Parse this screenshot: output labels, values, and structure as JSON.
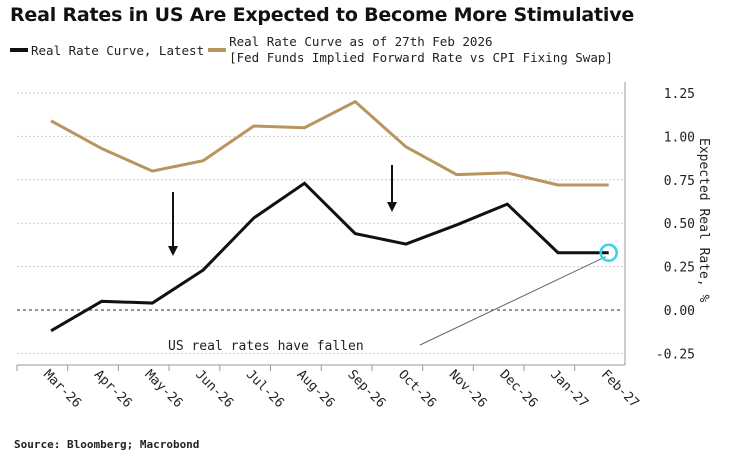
{
  "title": "Real Rates in US Are Expected to Become More Stimulative",
  "source": "Source: Bloomberg; Macrobond",
  "chart_data": {
    "type": "line",
    "title": "Real Rates in US Are Expected to Become More Stimulative",
    "categories": [
      "Mar-26",
      "Apr-26",
      "May-26",
      "Jun-26",
      "Jul-26",
      "Aug-26",
      "Sep-26",
      "Oct-26",
      "Nov-26",
      "Dec-26",
      "Jan-27",
      "Feb-27"
    ],
    "series": [
      {
        "name": "Real Rate Curve, Latest",
        "color": "#111111",
        "values": [
          -0.12,
          0.05,
          0.04,
          0.23,
          0.53,
          0.73,
          0.44,
          0.38,
          0.49,
          0.61,
          0.33,
          0.33
        ]
      },
      {
        "name": "Real Rate Curve as of 27th Feb 2026",
        "color": "#b8955f",
        "values": [
          1.09,
          0.93,
          0.8,
          0.86,
          1.06,
          1.05,
          1.2,
          0.94,
          0.78,
          0.79,
          0.72,
          0.72
        ]
      }
    ],
    "legend_subtitle": "[Fed Funds Implied Forward Rate vs CPI Fixing Swap]",
    "ylabel": "Expected Real Rate, %",
    "ylim": [
      -0.3,
      1.3
    ],
    "yticks": [
      -0.25,
      0,
      0.25,
      0.5,
      0.75,
      1,
      1.25
    ],
    "ytick_labels": [
      "-0.25",
      "0.00",
      "0.25",
      "0.50",
      "0.75",
      "1.00",
      "1.25"
    ],
    "grid": true,
    "legend_position": "top-left",
    "annotation": "US real rates have fallen",
    "highlight_color": "#33d6e6"
  }
}
